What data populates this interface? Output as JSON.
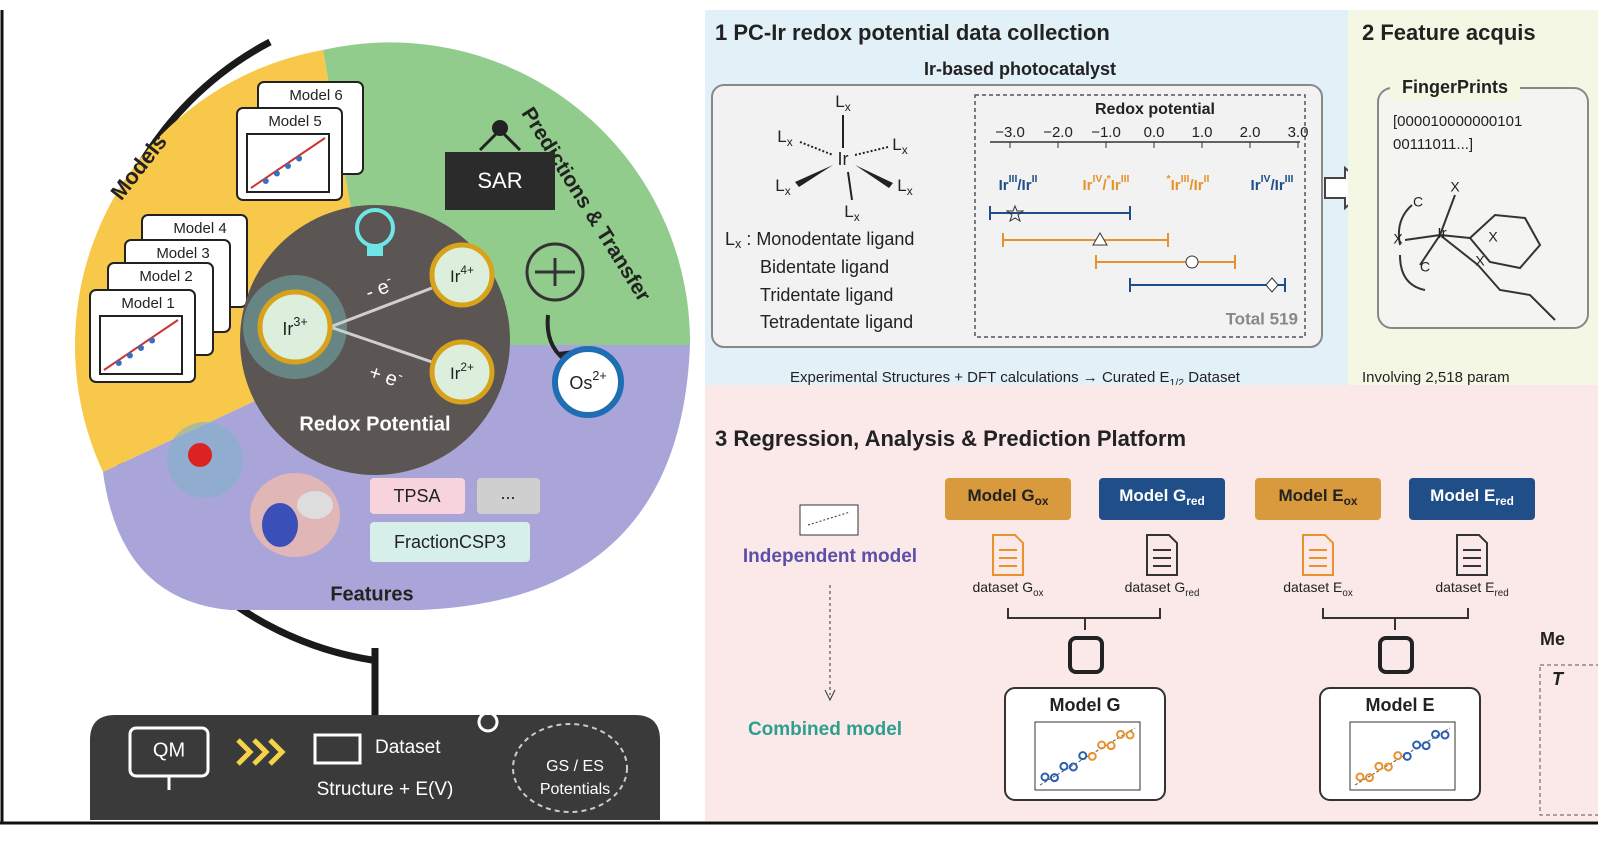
{
  "left": {
    "models_label": "Models",
    "models": [
      "Model 1",
      "Model 2",
      "Model 3",
      "Model 4",
      "Model 5",
      "Model 6"
    ],
    "predictions_label": "Predictions & Transfer",
    "sar": "SAR",
    "transfer_target": [
      {
        "t": "Os"
      },
      {
        "sup": "2+"
      }
    ],
    "center": {
      "ir3": [
        {
          "t": "Ir"
        },
        {
          "sup": "3+"
        }
      ],
      "ir4": [
        {
          "t": "Ir"
        },
        {
          "sup": "4+"
        }
      ],
      "ir2": [
        {
          "t": "Ir"
        },
        {
          "sup": "2+"
        }
      ],
      "oxidation": [
        {
          "t": "- e"
        },
        {
          "sup": "-"
        }
      ],
      "reduction": [
        {
          "t": "+ e"
        },
        {
          "sup": "-"
        }
      ],
      "label": "Redox Potential"
    },
    "features": {
      "descriptors": [
        "TPSA",
        "...",
        "FractionCSP3"
      ],
      "label": "Features"
    },
    "pipeline": {
      "source": "QM",
      "dataset": "Dataset",
      "dataset_content": "Structure + E(V)",
      "potentials": [
        "GS / ES",
        "Potentials"
      ]
    }
  },
  "panel1": {
    "title": "1  PC-Ir redox potential data collection",
    "subtitle": "Ir-based photocatalyst",
    "structure": {
      "metal": "Ir",
      "ligand": [
        {
          "t": "L"
        },
        {
          "sub": "x"
        }
      ]
    },
    "ligand_types": [
      [
        {
          "t": "L"
        },
        {
          "sub": "x"
        },
        {
          "t": " : Monodentate ligand"
        }
      ],
      "Bidentate ligand",
      "Tridentate ligand",
      "Tetradentate ligand"
    ],
    "axis_label": "Redox potential",
    "axis_ticks": [
      "−3.0",
      "−2.0",
      "−1.0",
      "0.0",
      "1.0",
      "2.0",
      "3.0"
    ],
    "couples": [
      [
        {
          "t": "Ir"
        },
        {
          "sup": "III"
        },
        {
          "t": "/Ir"
        },
        {
          "sup": "II"
        }
      ],
      [
        {
          "t": "Ir"
        },
        {
          "sup": "IV"
        },
        {
          "t": "/"
        },
        {
          "sup": "*"
        },
        {
          "t": "Ir"
        },
        {
          "sup": "III"
        }
      ],
      [
        {
          "sup": "*"
        },
        {
          "t": "Ir"
        },
        {
          "sup": "III"
        },
        {
          "t": "/Ir"
        },
        {
          "sup": "II"
        }
      ],
      [
        {
          "t": "Ir"
        },
        {
          "sup": "IV"
        },
        {
          "t": "/Ir"
        },
        {
          "sup": "III"
        }
      ]
    ],
    "total": "Total 519",
    "caption": [
      {
        "t": "Experimental Structures + DFT calculations → Curated E"
      },
      {
        "sub": "1/2"
      },
      {
        "t": " Dataset"
      }
    ]
  },
  "panel2": {
    "title": "2  Feature acquis",
    "fingerprints_label": "FingerPrints",
    "bits": [
      "[000010000000101",
      "00111011...]"
    ],
    "atoms": [
      "X",
      "C",
      "X",
      "Ir",
      "C",
      "X",
      "X"
    ],
    "caption": "Involving 2,518 param"
  },
  "panel3": {
    "title": "3  Regression, Analysis & Prediction Platform",
    "independent": "Independent model",
    "combined": "Combined model",
    "models": [
      [
        {
          "t": "Model G"
        },
        {
          "sub": "ox"
        }
      ],
      [
        {
          "t": "Model G"
        },
        {
          "sub": "red"
        }
      ],
      [
        {
          "t": "Model E"
        },
        {
          "sub": "ox"
        }
      ],
      [
        {
          "t": "Model E"
        },
        {
          "sub": "red"
        }
      ]
    ],
    "datasets": [
      [
        {
          "t": "dataset G"
        },
        {
          "sub": "ox"
        }
      ],
      [
        {
          "t": "dataset G"
        },
        {
          "sub": "red"
        }
      ],
      [
        {
          "t": "dataset E"
        },
        {
          "sub": "ox"
        }
      ],
      [
        {
          "t": "dataset E"
        },
        {
          "sub": "red"
        }
      ]
    ],
    "merged": [
      "Model G",
      "Model E"
    ],
    "cut_label": "Me",
    "cut_box_label": "T"
  }
}
